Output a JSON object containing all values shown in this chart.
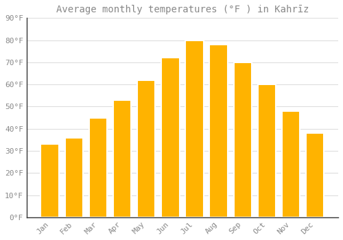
{
  "title": "Average monthly temperatures (°F ) in Kahrīz",
  "months": [
    "Jan",
    "Feb",
    "Mar",
    "Apr",
    "May",
    "Jun",
    "Jul",
    "Aug",
    "Sep",
    "Oct",
    "Nov",
    "Dec"
  ],
  "values": [
    33,
    36,
    45,
    53,
    62,
    72,
    80,
    78,
    70,
    60,
    48,
    38
  ],
  "bar_color_top": "#FFB300",
  "bar_color_bottom": "#FFA000",
  "bar_color": "#FFA500",
  "bar_edge_color": "#FFFFFF",
  "background_color": "#FFFFFF",
  "grid_color": "#DDDDDD",
  "text_color": "#888888",
  "title_color": "#888888",
  "axis_color": "#333333",
  "ylim": [
    0,
    90
  ],
  "yticks": [
    0,
    10,
    20,
    30,
    40,
    50,
    60,
    70,
    80,
    90
  ],
  "title_fontsize": 10,
  "tick_fontsize": 8,
  "figsize": [
    5.0,
    3.5
  ],
  "dpi": 100,
  "bar_width": 0.75
}
